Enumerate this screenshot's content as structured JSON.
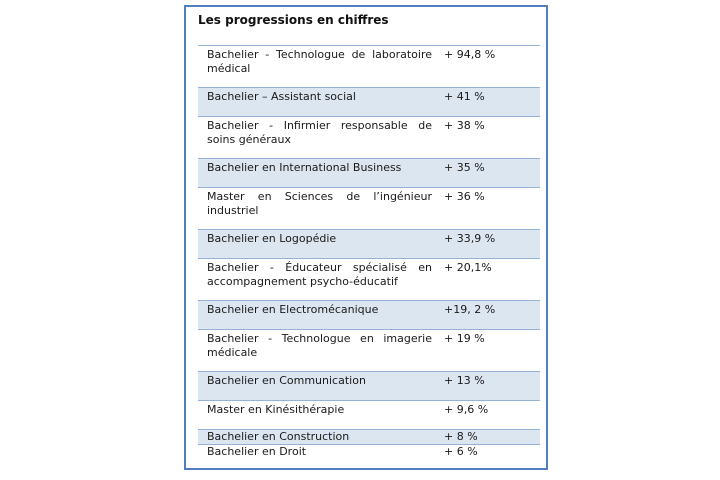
{
  "title": "Les progressions en chiffres",
  "rows": [
    {
      "program": "Bachelier - Technologue de laboratoire médical",
      "growth": "+ 94,8 %"
    },
    {
      "program": "Bachelier – Assistant social",
      "growth": "+ 41 %"
    },
    {
      "program": "Bachelier - Infirmier responsable de soins généraux",
      "growth": "+ 38 %"
    },
    {
      "program": "Bachelier en International Business",
      "growth": "+ 35 %"
    },
    {
      "program": "Master en Sciences de l’ingénieur industriel",
      "growth": "+ 36 %"
    },
    {
      "program": "Bachelier en Logopédie",
      "growth": "+ 33,9 %"
    },
    {
      "program": "Bachelier - Éducateur spécialisé en accompagnement psycho-éducatif",
      "growth": "+ 20,1%"
    },
    {
      "program": "Bachelier en Electromécanique",
      "growth": "+19, 2 %"
    },
    {
      "program": "Bachelier - Technologue en imagerie médicale",
      "growth": "+ 19 %"
    },
    {
      "program": "Bachelier en Communication",
      "growth": "+ 13 %"
    },
    {
      "program": "Master en Kinésithérapie",
      "growth": "+ 9,6 %"
    },
    {
      "program": "Bachelier en Construction",
      "growth": "+ 8 %"
    },
    {
      "program": "Bachelier en Droit",
      "growth": "+ 6 %"
    }
  ],
  "colors": {
    "border": "#4f7dbf",
    "row_shade": "#dce6f1",
    "row_line": "#95b3d7"
  }
}
